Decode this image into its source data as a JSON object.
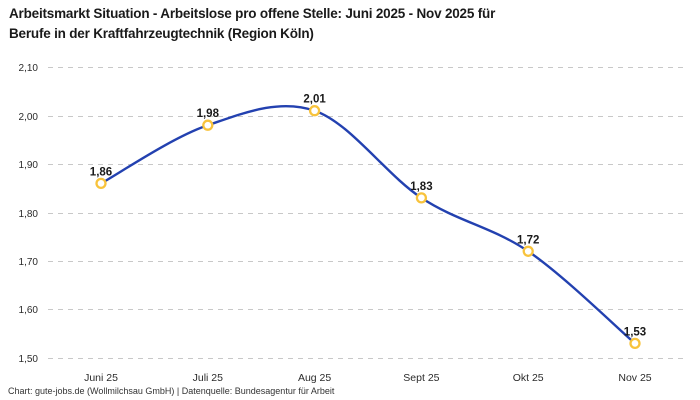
{
  "title": {
    "line1": "Arbeitsmarkt Situation - Arbeitslose pro offene Stelle: Juni 2025 - Nov 2025 für",
    "line2": "Berufe in der Kraftfahrzeugtechnik (Region Köln)"
  },
  "footer": "Chart: gute-jobs.de (Wollmilchsau GmbH) | Datenquelle: Bundesagentur für Arbeit",
  "chart_data": {
    "type": "line",
    "title": "Arbeitsmarkt Situation - Arbeitslose pro offene Stelle: Juni 2025 - Nov 2025 für Berufe in der Kraftfahrzeugtechnik (Region Köln)",
    "categories": [
      "Juni 25",
      "Juli 25",
      "Aug 25",
      "Sept 25",
      "Okt 25",
      "Nov 25"
    ],
    "values": [
      1.86,
      1.98,
      2.01,
      1.83,
      1.72,
      1.53
    ],
    "point_labels": [
      "1,86",
      "1,98",
      "2,01",
      "1,83",
      "1,72",
      "1,53"
    ],
    "xlabel": "",
    "ylabel": "",
    "ylim": [
      1.5,
      2.1
    ],
    "yticks": [
      2.1,
      2.0,
      1.9,
      1.8,
      1.7,
      1.6,
      1.5
    ],
    "ytick_labels": [
      "2,10",
      "2,00",
      "1,90",
      "1,80",
      "1,70",
      "1,60",
      "1,50"
    ],
    "grid": "horizontal-dashed",
    "legend": "none",
    "line_smooth": true,
    "colors": {
      "line": "#2341b0",
      "marker_stroke": "#f8c33c",
      "marker_fill": "#ffffff",
      "grid": "#c8c8c8",
      "title_text": "#1a1a1a",
      "axis_text": "#2b2b2b",
      "point_label_text": "#1a1a1a",
      "footer_text": "#333333",
      "background": "#ffffff"
    }
  }
}
